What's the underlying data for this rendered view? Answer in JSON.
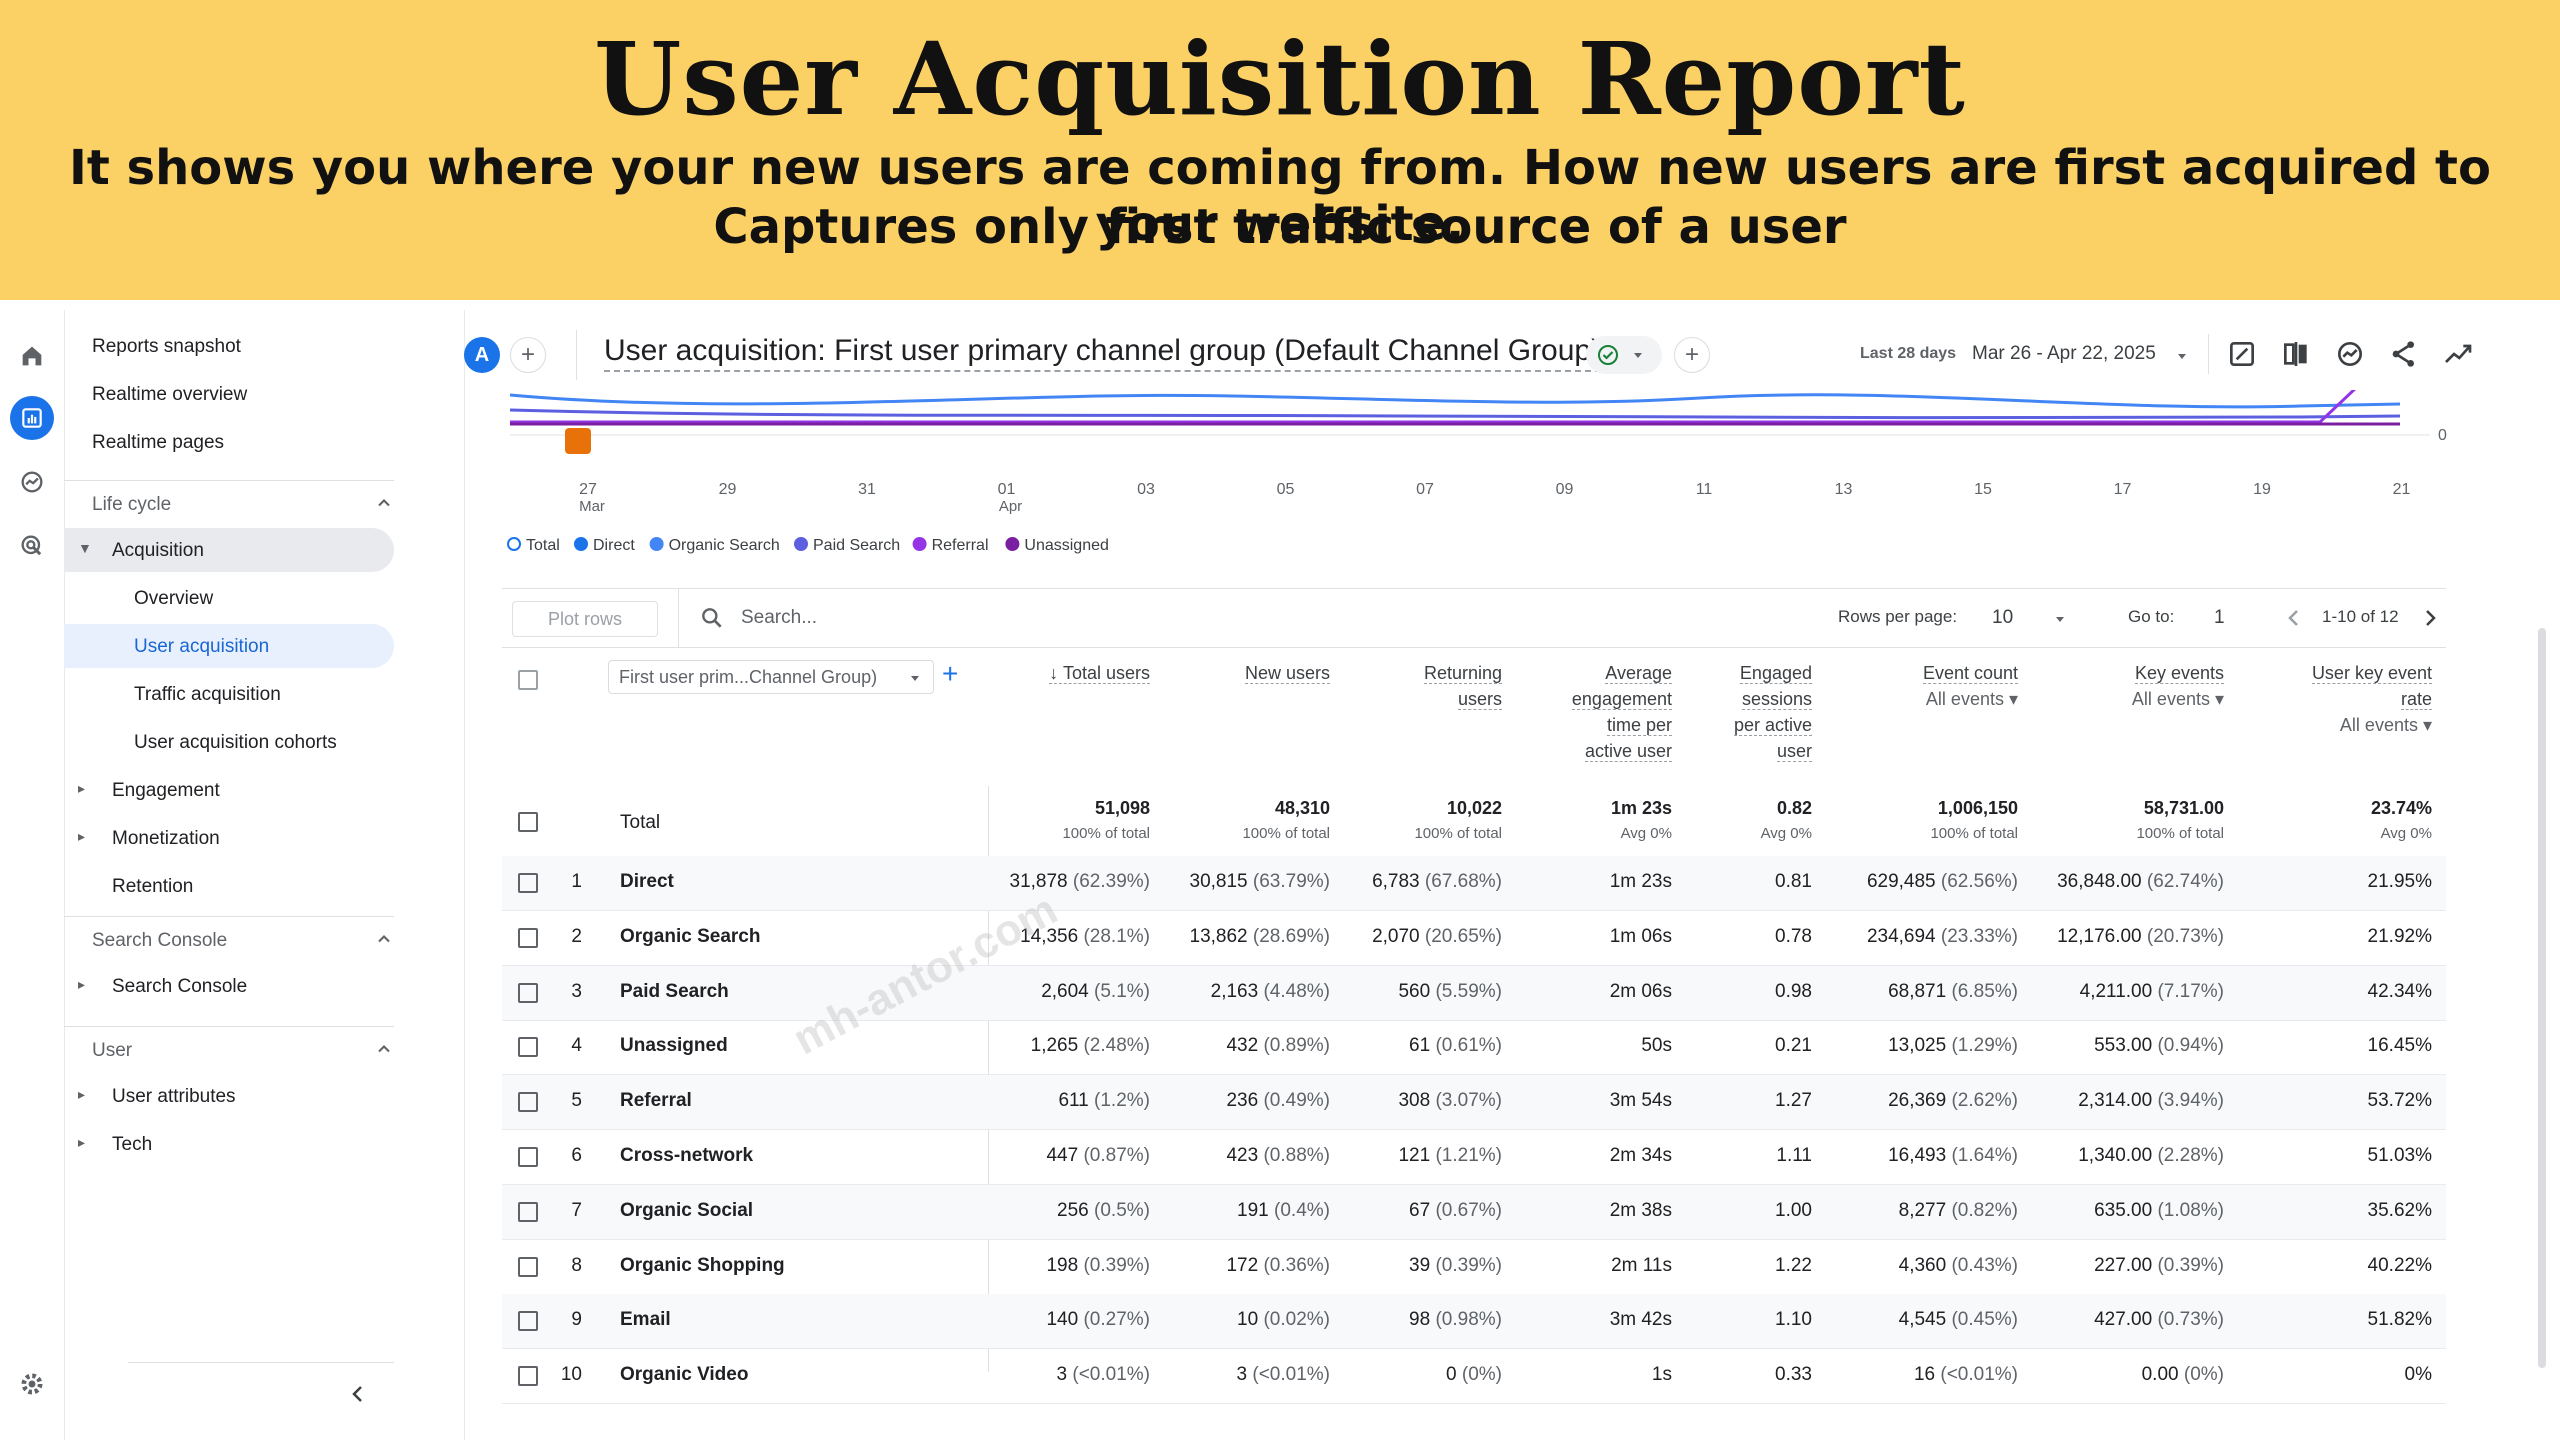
{
  "banner": {
    "title": "User Acquisition Report",
    "subtitle_line1": "It shows you where your new users are coming from. How new users are first acquired to your website.",
    "subtitle_line2": "Captures only first traffic source of a user"
  },
  "rail": {
    "icons": [
      "home-icon",
      "reports-icon",
      "explore-icon",
      "advertising-icon"
    ],
    "settings_icon": "gear-icon"
  },
  "sidebar": {
    "top_items": [
      "Reports snapshot",
      "Realtime overview",
      "Realtime pages"
    ],
    "lifecycle": {
      "label": "Life cycle",
      "acquisition": "Acquisition",
      "acquisition_children": [
        "Overview",
        "User acquisition",
        "Traffic acquisition",
        "User acquisition cohorts"
      ],
      "engagement": "Engagement",
      "monetization": "Monetization",
      "retention": "Retention"
    },
    "search_console": {
      "label": "Search Console",
      "item": "Search Console"
    },
    "user": {
      "label": "User",
      "items": [
        "User attributes",
        "Tech"
      ]
    }
  },
  "header": {
    "avatar": "A",
    "add": "+",
    "report_title": "User acquisition: First user primary channel group (Default Channel Group)",
    "date_label": "Last 28 days",
    "date_range": "Mar 26 - Apr 22, 2025"
  },
  "chart_data": {
    "type": "line",
    "x_ticks": [
      "27",
      "29",
      "31",
      "01",
      "03",
      "05",
      "07",
      "09",
      "11",
      "13",
      "15",
      "17",
      "19",
      "21"
    ],
    "x_sublabels": {
      "27": "Mar",
      "01": "Apr"
    },
    "y_ticks": [
      "0"
    ],
    "legend": [
      {
        "name": "Total",
        "color": "#ffffff",
        "border": "#1a73e8"
      },
      {
        "name": "Direct",
        "color": "#1a73e8"
      },
      {
        "name": "Organic Search",
        "color": "#4285f4"
      },
      {
        "name": "Paid Search",
        "color": "#5b5fe0"
      },
      {
        "name": "Referral",
        "color": "#9334e6"
      },
      {
        "name": "Unassigned",
        "color": "#7b1fa2"
      }
    ]
  },
  "toolbar": {
    "plot_rows": "Plot rows",
    "search_placeholder": "Search...",
    "rows_per_page_label": "Rows per page:",
    "rows_per_page": "10",
    "go_to_label": "Go to:",
    "go_to": "1",
    "range": "1-10 of 12"
  },
  "table": {
    "dimension_select": "First user prim...Channel Group)",
    "columns": [
      {
        "lines": [
          "Total users"
        ],
        "sub": ""
      },
      {
        "lines": [
          "New users"
        ],
        "sub": ""
      },
      {
        "lines": [
          "Returning",
          "users"
        ],
        "sub": ""
      },
      {
        "lines": [
          "Average",
          "engagement",
          "time per",
          "active user"
        ],
        "sub": ""
      },
      {
        "lines": [
          "Engaged",
          "sessions",
          "per active",
          "user"
        ],
        "sub": ""
      },
      {
        "lines": [
          "Event count"
        ],
        "sub": "All events"
      },
      {
        "lines": [
          "Key events"
        ],
        "sub": "All events"
      },
      {
        "lines": [
          "User key event",
          "rate"
        ],
        "sub": "All events"
      }
    ],
    "total": {
      "label": "Total",
      "values": [
        "51,098",
        "48,310",
        "10,022",
        "1m 23s",
        "0.82",
        "1,006,150",
        "58,731.00",
        "23.74%"
      ],
      "subs": [
        "100% of total",
        "100% of total",
        "100% of total",
        "Avg 0%",
        "Avg 0%",
        "100% of total",
        "100% of total",
        "Avg 0%"
      ]
    },
    "rows": [
      {
        "idx": "1",
        "name": "Direct",
        "cells": [
          [
            "31,878",
            "(62.39%)"
          ],
          [
            "30,815",
            "(63.79%)"
          ],
          [
            "6,783",
            "(67.68%)"
          ],
          [
            "1m 23s",
            ""
          ],
          [
            "0.81",
            ""
          ],
          [
            "629,485",
            "(62.56%)"
          ],
          [
            "36,848.00",
            "(62.74%)"
          ],
          [
            "21.95%",
            ""
          ]
        ]
      },
      {
        "idx": "2",
        "name": "Organic Search",
        "cells": [
          [
            "14,356",
            "(28.1%)"
          ],
          [
            "13,862",
            "(28.69%)"
          ],
          [
            "2,070",
            "(20.65%)"
          ],
          [
            "1m 06s",
            ""
          ],
          [
            "0.78",
            ""
          ],
          [
            "234,694",
            "(23.33%)"
          ],
          [
            "12,176.00",
            "(20.73%)"
          ],
          [
            "21.92%",
            ""
          ]
        ]
      },
      {
        "idx": "3",
        "name": "Paid Search",
        "cells": [
          [
            "2,604",
            "(5.1%)"
          ],
          [
            "2,163",
            "(4.48%)"
          ],
          [
            "560",
            "(5.59%)"
          ],
          [
            "2m 06s",
            ""
          ],
          [
            "0.98",
            ""
          ],
          [
            "68,871",
            "(6.85%)"
          ],
          [
            "4,211.00",
            "(7.17%)"
          ],
          [
            "42.34%",
            ""
          ]
        ]
      },
      {
        "idx": "4",
        "name": "Unassigned",
        "cells": [
          [
            "1,265",
            "(2.48%)"
          ],
          [
            "432",
            "(0.89%)"
          ],
          [
            "61",
            "(0.61%)"
          ],
          [
            "50s",
            ""
          ],
          [
            "0.21",
            ""
          ],
          [
            "13,025",
            "(1.29%)"
          ],
          [
            "553.00",
            "(0.94%)"
          ],
          [
            "16.45%",
            ""
          ]
        ]
      },
      {
        "idx": "5",
        "name": "Referral",
        "cells": [
          [
            "611",
            "(1.2%)"
          ],
          [
            "236",
            "(0.49%)"
          ],
          [
            "308",
            "(3.07%)"
          ],
          [
            "3m 54s",
            ""
          ],
          [
            "1.27",
            ""
          ],
          [
            "26,369",
            "(2.62%)"
          ],
          [
            "2,314.00",
            "(3.94%)"
          ],
          [
            "53.72%",
            ""
          ]
        ]
      },
      {
        "idx": "6",
        "name": "Cross-network",
        "cells": [
          [
            "447",
            "(0.87%)"
          ],
          [
            "423",
            "(0.88%)"
          ],
          [
            "121",
            "(1.21%)"
          ],
          [
            "2m 34s",
            ""
          ],
          [
            "1.11",
            ""
          ],
          [
            "16,493",
            "(1.64%)"
          ],
          [
            "1,340.00",
            "(2.28%)"
          ],
          [
            "51.03%",
            ""
          ]
        ]
      },
      {
        "idx": "7",
        "name": "Organic Social",
        "cells": [
          [
            "256",
            "(0.5%)"
          ],
          [
            "191",
            "(0.4%)"
          ],
          [
            "67",
            "(0.67%)"
          ],
          [
            "2m 38s",
            ""
          ],
          [
            "1.00",
            ""
          ],
          [
            "8,277",
            "(0.82%)"
          ],
          [
            "635.00",
            "(1.08%)"
          ],
          [
            "35.62%",
            ""
          ]
        ]
      },
      {
        "idx": "8",
        "name": "Organic Shopping",
        "cells": [
          [
            "198",
            "(0.39%)"
          ],
          [
            "172",
            "(0.36%)"
          ],
          [
            "39",
            "(0.39%)"
          ],
          [
            "2m 11s",
            ""
          ],
          [
            "1.22",
            ""
          ],
          [
            "4,360",
            "(0.43%)"
          ],
          [
            "227.00",
            "(0.39%)"
          ],
          [
            "40.22%",
            ""
          ]
        ]
      },
      {
        "idx": "9",
        "name": "Email",
        "cells": [
          [
            "140",
            "(0.27%)"
          ],
          [
            "10",
            "(0.02%)"
          ],
          [
            "98",
            "(0.98%)"
          ],
          [
            "3m 42s",
            ""
          ],
          [
            "1.10",
            ""
          ],
          [
            "4,545",
            "(0.45%)"
          ],
          [
            "427.00",
            "(0.73%)"
          ],
          [
            "51.82%",
            ""
          ]
        ]
      },
      {
        "idx": "10",
        "name": "Organic Video",
        "cells": [
          [
            "3",
            "(<0.01%)"
          ],
          [
            "3",
            "(<0.01%)"
          ],
          [
            "0",
            "(0%)"
          ],
          [
            "1s",
            ""
          ],
          [
            "0.33",
            ""
          ],
          [
            "16",
            "(<0.01%)"
          ],
          [
            "0.00",
            "(0%)"
          ],
          [
            "0%",
            ""
          ]
        ]
      }
    ]
  },
  "watermark": "mh-antor.com"
}
